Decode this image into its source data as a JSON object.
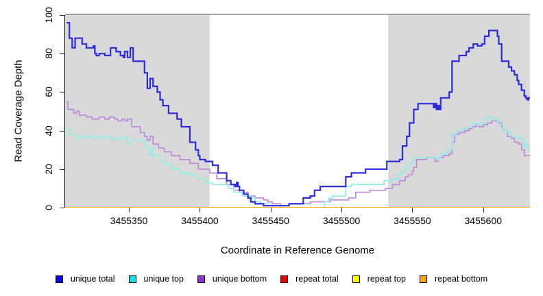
{
  "axes": {
    "x_label": "Coordinate in Reference Genome",
    "y_label": "Read Coverage Depth"
  },
  "chart_data": {
    "type": "line",
    "step": true,
    "title": "",
    "xlabel": "Coordinate in Reference Genome",
    "ylabel": "Read Coverage Depth",
    "xlim": [
      3455305,
      3455633
    ],
    "ylim": [
      0,
      100
    ],
    "x_ticks": [
      3455350,
      3455400,
      3455450,
      3455500,
      3455550,
      3455600
    ],
    "y_ticks": [
      0,
      20,
      40,
      60,
      80,
      100
    ],
    "grid": false,
    "legend_position": "bottom",
    "panel_background": "#ffffff",
    "shaded_color": "#d9d9d9",
    "top_border_color": "#8c8c8c",
    "shaded_regions": [
      {
        "name": "left-repeat-region",
        "from": 3455305,
        "to": 3455407
      },
      {
        "name": "right-repeat-region",
        "from": 3455533,
        "to": 3455633
      }
    ],
    "series": [
      {
        "name": "repeat total",
        "line_color": "#ee0000",
        "swatch_color": "#ee0000",
        "width": 1.5,
        "points": [
          [
            3455305,
            0
          ],
          [
            3455633,
            0
          ]
        ]
      },
      {
        "name": "repeat top",
        "line_color": "#ffff00",
        "swatch_color": "#ffff00",
        "width": 1.5,
        "points": [
          [
            3455305,
            0
          ],
          [
            3455633,
            0
          ]
        ]
      },
      {
        "name": "unique bottom",
        "line_color": "#bb86dd",
        "swatch_color": "#9932cc",
        "width": 1.6,
        "points": [
          [
            3455306,
            55
          ],
          [
            3455307,
            51
          ],
          [
            3455311,
            49
          ],
          [
            3455313,
            50
          ],
          [
            3455315,
            48
          ],
          [
            3455320,
            47
          ],
          [
            3455324,
            46
          ],
          [
            3455329,
            47
          ],
          [
            3455333,
            46
          ],
          [
            3455336,
            47
          ],
          [
            3455340,
            46
          ],
          [
            3455342,
            45
          ],
          [
            3455345,
            46
          ],
          [
            3455347,
            45
          ],
          [
            3455349,
            46
          ],
          [
            3455352,
            42
          ],
          [
            3455358,
            39
          ],
          [
            3455361,
            37
          ],
          [
            3455363,
            35
          ],
          [
            3455365,
            37
          ],
          [
            3455367,
            33
          ],
          [
            3455371,
            31
          ],
          [
            3455375,
            29
          ],
          [
            3455380,
            27
          ],
          [
            3455386,
            25
          ],
          [
            3455393,
            23
          ],
          [
            3455399,
            20
          ],
          [
            3455407,
            18
          ],
          [
            3455412,
            15
          ],
          [
            3455419,
            12
          ],
          [
            3455424,
            9
          ],
          [
            3455428,
            8
          ],
          [
            3455434,
            6
          ],
          [
            3455439,
            5
          ],
          [
            3455445,
            4
          ],
          [
            3455448,
            3
          ],
          [
            3455451,
            2
          ],
          [
            3455457,
            1
          ],
          [
            3455463,
            2
          ],
          [
            3455478,
            3
          ],
          [
            3455492,
            4
          ],
          [
            3455505,
            5
          ],
          [
            3455510,
            8
          ],
          [
            3455520,
            9
          ],
          [
            3455531,
            10
          ],
          [
            3455536,
            12
          ],
          [
            3455541,
            14
          ],
          [
            3455545,
            16
          ],
          [
            3455547,
            17
          ],
          [
            3455550,
            19
          ],
          [
            3455551,
            21
          ],
          [
            3455553,
            25
          ],
          [
            3455560,
            26
          ],
          [
            3455566,
            24
          ],
          [
            3455568,
            25
          ],
          [
            3455569,
            26
          ],
          [
            3455572,
            27
          ],
          [
            3455576,
            28
          ],
          [
            3455578,
            34
          ],
          [
            3455580,
            38
          ],
          [
            3455583,
            39
          ],
          [
            3455587,
            40
          ],
          [
            3455590,
            41
          ],
          [
            3455592,
            42
          ],
          [
            3455595,
            43
          ],
          [
            3455597,
            42
          ],
          [
            3455600,
            43
          ],
          [
            3455603,
            44
          ],
          [
            3455606,
            45
          ],
          [
            3455611,
            44
          ],
          [
            3455613,
            42
          ],
          [
            3455614,
            40
          ],
          [
            3455617,
            37
          ],
          [
            3455620,
            36
          ],
          [
            3455622,
            34
          ],
          [
            3455625,
            33
          ],
          [
            3455627,
            30
          ],
          [
            3455629,
            27
          ],
          [
            3455633,
            27
          ]
        ]
      },
      {
        "name": "unique top",
        "line_color": "#8aeeea",
        "swatch_color": "#00e5ee",
        "width": 1.6,
        "points": [
          [
            3455306,
            41
          ],
          [
            3455308,
            38
          ],
          [
            3455312,
            36
          ],
          [
            3455314,
            37
          ],
          [
            3455318,
            36
          ],
          [
            3455321,
            37
          ],
          [
            3455325,
            36
          ],
          [
            3455328,
            37
          ],
          [
            3455331,
            36
          ],
          [
            3455334,
            37
          ],
          [
            3455337,
            36
          ],
          [
            3455340,
            35
          ],
          [
            3455343,
            36
          ],
          [
            3455347,
            37
          ],
          [
            3455349,
            33
          ],
          [
            3455352,
            35
          ],
          [
            3455356,
            35
          ],
          [
            3455359,
            34
          ],
          [
            3455362,
            31
          ],
          [
            3455364,
            27
          ],
          [
            3455366,
            31
          ],
          [
            3455367,
            27
          ],
          [
            3455372,
            24
          ],
          [
            3455376,
            22
          ],
          [
            3455381,
            20
          ],
          [
            3455386,
            18
          ],
          [
            3455392,
            17
          ],
          [
            3455398,
            15
          ],
          [
            3455404,
            13
          ],
          [
            3455409,
            12
          ],
          [
            3455420,
            10
          ],
          [
            3455424,
            8
          ],
          [
            3455430,
            6
          ],
          [
            3455436,
            5
          ],
          [
            3455439,
            3
          ],
          [
            3455443,
            2
          ],
          [
            3455448,
            1
          ],
          [
            3455457,
            0
          ],
          [
            3455488,
            3
          ],
          [
            3455491,
            5
          ],
          [
            3455494,
            6
          ],
          [
            3455503,
            11
          ],
          [
            3455507,
            12
          ],
          [
            3455517,
            12
          ],
          [
            3455530,
            14
          ],
          [
            3455537,
            15
          ],
          [
            3455540,
            17
          ],
          [
            3455542,
            19
          ],
          [
            3455545,
            21
          ],
          [
            3455547,
            23
          ],
          [
            3455550,
            26
          ],
          [
            3455567,
            25
          ],
          [
            3455569,
            26
          ],
          [
            3455570,
            28
          ],
          [
            3455574,
            29
          ],
          [
            3455576,
            30
          ],
          [
            3455578,
            38
          ],
          [
            3455581,
            40
          ],
          [
            3455585,
            41
          ],
          [
            3455589,
            42
          ],
          [
            3455592,
            44
          ],
          [
            3455596,
            43
          ],
          [
            3455599,
            44
          ],
          [
            3455601,
            46
          ],
          [
            3455603,
            47
          ],
          [
            3455608,
            46
          ],
          [
            3455610,
            45
          ],
          [
            3455612,
            43
          ],
          [
            3455614,
            40
          ],
          [
            3455617,
            39
          ],
          [
            3455620,
            37
          ],
          [
            3455624,
            36
          ],
          [
            3455628,
            34
          ],
          [
            3455629,
            31
          ],
          [
            3455630,
            33
          ],
          [
            3455631,
            31
          ],
          [
            3455633,
            31
          ]
        ]
      },
      {
        "name": "unique total",
        "line_color": "#2b2bdd",
        "swatch_color": "#0000e6",
        "width": 2.2,
        "points": [
          [
            3455306,
            96
          ],
          [
            3455308,
            88
          ],
          [
            3455310,
            83
          ],
          [
            3455312,
            88
          ],
          [
            3455317,
            85
          ],
          [
            3455320,
            83
          ],
          [
            3455325,
            84
          ],
          [
            3455326,
            80
          ],
          [
            3455327,
            79
          ],
          [
            3455329,
            80
          ],
          [
            3455333,
            79
          ],
          [
            3455337,
            83
          ],
          [
            3455341,
            81
          ],
          [
            3455344,
            79
          ],
          [
            3455346,
            78
          ],
          [
            3455347,
            81
          ],
          [
            3455349,
            78
          ],
          [
            3455351,
            83
          ],
          [
            3455353,
            76
          ],
          [
            3455361,
            70
          ],
          [
            3455363,
            62
          ],
          [
            3455365,
            67
          ],
          [
            3455367,
            63
          ],
          [
            3455370,
            60
          ],
          [
            3455372,
            56
          ],
          [
            3455374,
            53
          ],
          [
            3455378,
            49
          ],
          [
            3455384,
            46
          ],
          [
            3455387,
            42
          ],
          [
            3455393,
            34
          ],
          [
            3455397,
            30
          ],
          [
            3455399,
            27
          ],
          [
            3455400,
            25
          ],
          [
            3455404,
            24
          ],
          [
            3455409,
            22
          ],
          [
            3455413,
            18
          ],
          [
            3455419,
            14
          ],
          [
            3455422,
            12
          ],
          [
            3455425,
            11
          ],
          [
            3455426,
            13
          ],
          [
            3455427,
            11
          ],
          [
            3455428,
            9
          ],
          [
            3455431,
            7
          ],
          [
            3455434,
            5
          ],
          [
            3455436,
            3
          ],
          [
            3455439,
            2
          ],
          [
            3455445,
            1
          ],
          [
            3455463,
            2
          ],
          [
            3455473,
            5
          ],
          [
            3455478,
            6
          ],
          [
            3455481,
            9
          ],
          [
            3455485,
            11
          ],
          [
            3455503,
            16
          ],
          [
            3455507,
            18
          ],
          [
            3455517,
            20
          ],
          [
            3455532,
            24
          ],
          [
            3455541,
            25
          ],
          [
            3455543,
            32
          ],
          [
            3455546,
            37
          ],
          [
            3455548,
            44
          ],
          [
            3455551,
            51
          ],
          [
            3455554,
            54
          ],
          [
            3455565,
            52
          ],
          [
            3455566,
            54
          ],
          [
            3455567,
            51
          ],
          [
            3455568,
            53
          ],
          [
            3455569,
            51
          ],
          [
            3455570,
            57
          ],
          [
            3455576,
            60
          ],
          [
            3455578,
            76
          ],
          [
            3455583,
            79
          ],
          [
            3455588,
            81
          ],
          [
            3455590,
            83
          ],
          [
            3455593,
            85
          ],
          [
            3455596,
            84
          ],
          [
            3455599,
            85
          ],
          [
            3455601,
            89
          ],
          [
            3455604,
            92
          ],
          [
            3455610,
            89
          ],
          [
            3455611,
            85
          ],
          [
            3455613,
            76
          ],
          [
            3455618,
            73
          ],
          [
            3455620,
            71
          ],
          [
            3455622,
            69
          ],
          [
            3455624,
            66
          ],
          [
            3455625,
            64
          ],
          [
            3455627,
            61
          ],
          [
            3455629,
            58
          ],
          [
            3455630,
            57
          ],
          [
            3455631,
            56
          ],
          [
            3455632,
            57
          ],
          [
            3455633,
            57
          ]
        ]
      },
      {
        "name": "repeat bottom",
        "line_color": "#ffa500",
        "swatch_color": "#ffa500",
        "width": 2,
        "points": [
          [
            3455305,
            0
          ],
          [
            3455633,
            0
          ]
        ]
      }
    ]
  },
  "legend": {
    "items": [
      {
        "label": "unique total",
        "color": "#0000e6"
      },
      {
        "label": "unique top",
        "color": "#00e5ee"
      },
      {
        "label": "unique bottom",
        "color": "#9932cc"
      },
      {
        "label": "repeat total",
        "color": "#ee0000"
      },
      {
        "label": "repeat top",
        "color": "#ffff00"
      },
      {
        "label": "repeat bottom",
        "color": "#ffa500"
      }
    ]
  }
}
